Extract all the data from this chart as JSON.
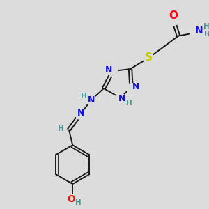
{
  "bg_color": "#dcdcdc",
  "bond_color": "#1a1a1a",
  "bond_width": 1.4,
  "atom_colors": {
    "N": "#1010ee",
    "O": "#ee1010",
    "S": "#c8c800",
    "H_teal": "#4a9898"
  },
  "fs": 9,
  "fsh": 7.5,
  "xlim": [
    0,
    10
  ],
  "ylim": [
    0,
    10
  ]
}
